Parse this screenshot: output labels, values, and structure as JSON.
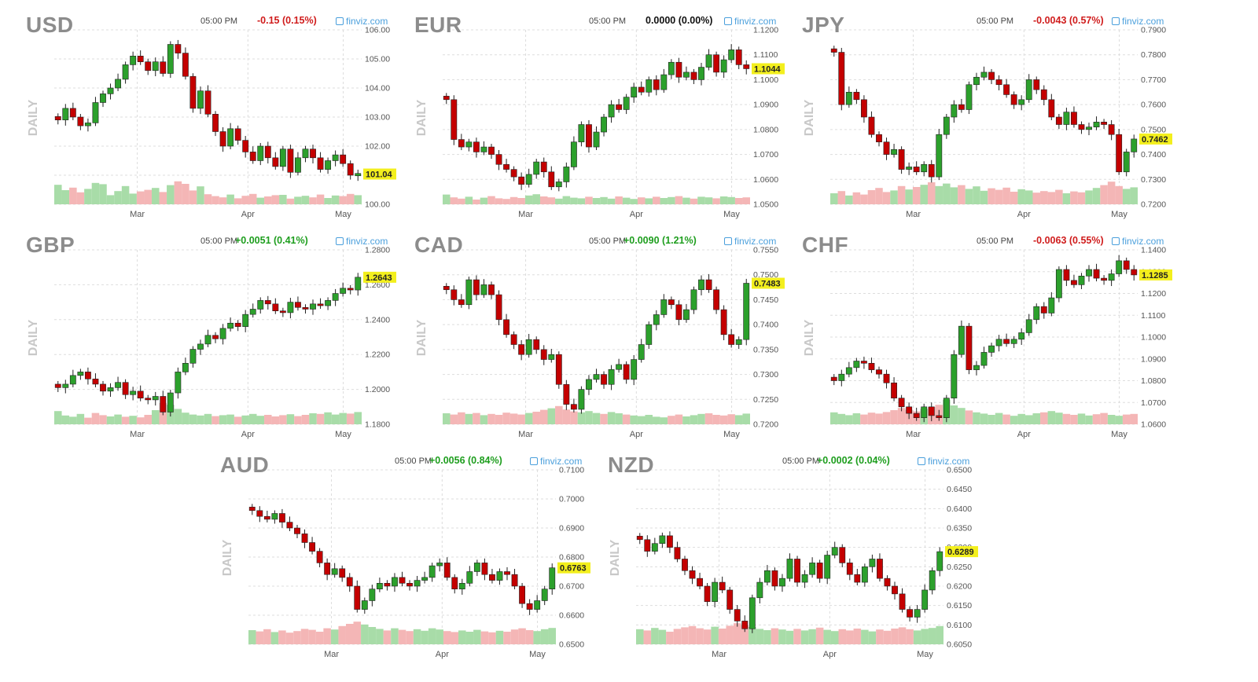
{
  "colors": {
    "up": "#2ca02c",
    "down": "#c40000",
    "vol_up": "#a8dca8",
    "vol_down": "#f4b6b6",
    "price_tag": "#f3ef1d",
    "brand": "#4a9fdc",
    "grid": "#dddddd"
  },
  "icons": {
    "brand_icon": "camera-icon"
  },
  "vertical_label": "DAILY",
  "brand": "finviz.com",
  "time": "05:00 PM",
  "chart_data": [
    {
      "type": "candlestick",
      "symbol": "USD",
      "change": "-0.15 (0.15%)",
      "change_dir": "down",
      "price": 101.04,
      "price_label": "101.04",
      "yticks": [
        "106.00",
        "105.00",
        "104.00",
        "103.00",
        "102.00",
        "101.00",
        "100.00"
      ],
      "ylim": [
        100.0,
        106.0
      ],
      "xticks": [
        "Mar",
        "Apr",
        "May"
      ],
      "closes": [
        102.9,
        103.3,
        103.0,
        102.7,
        102.8,
        103.5,
        103.8,
        104.0,
        104.3,
        104.8,
        105.1,
        104.9,
        104.6,
        104.9,
        104.5,
        105.5,
        105.2,
        104.4,
        103.3,
        103.9,
        103.1,
        102.5,
        102.0,
        102.6,
        102.2,
        101.8,
        101.5,
        102.0,
        101.6,
        101.3,
        101.9,
        101.1,
        101.6,
        101.9,
        101.6,
        101.2,
        101.5,
        101.7,
        101.4,
        101.0,
        101.04
      ],
      "volume": [
        0.62,
        0.45,
        0.53,
        0.38,
        0.49,
        0.68,
        0.64,
        0.29,
        0.42,
        0.58,
        0.34,
        0.41,
        0.46,
        0.52,
        0.39,
        0.61,
        0.73,
        0.65,
        0.44,
        0.57,
        0.32,
        0.26,
        0.22,
        0.31,
        0.19,
        0.27,
        0.33,
        0.21,
        0.25,
        0.29,
        0.3,
        0.18,
        0.24,
        0.27,
        0.22,
        0.31,
        0.2,
        0.28,
        0.26,
        0.33,
        0.29
      ]
    },
    {
      "type": "candlestick",
      "symbol": "EUR",
      "change": "0.0000 (0.00%)",
      "change_dir": "flat",
      "price": 1.1044,
      "price_label": "1.1044",
      "yticks": [
        "1.1200",
        "1.1100",
        "1.1000",
        "1.0900",
        "1.0800",
        "1.0700",
        "1.0600",
        "1.0500"
      ],
      "ylim": [
        1.05,
        1.12
      ],
      "xticks": [
        "Mar",
        "Apr",
        "May"
      ],
      "closes": [
        1.092,
        1.076,
        1.073,
        1.075,
        1.071,
        1.073,
        1.07,
        1.066,
        1.064,
        1.061,
        1.058,
        1.062,
        1.067,
        1.063,
        1.057,
        1.059,
        1.065,
        1.075,
        1.082,
        1.073,
        1.079,
        1.085,
        1.09,
        1.088,
        1.093,
        1.097,
        1.095,
        1.1,
        1.096,
        1.102,
        1.107,
        1.101,
        1.103,
        1.1,
        1.105,
        1.11,
        1.103,
        1.108,
        1.112,
        1.106,
        1.1044
      ],
      "volume": [
        0.31,
        0.22,
        0.18,
        0.24,
        0.15,
        0.21,
        0.26,
        0.19,
        0.17,
        0.23,
        0.2,
        0.28,
        0.32,
        0.25,
        0.22,
        0.18,
        0.26,
        0.21,
        0.19,
        0.24,
        0.2,
        0.23,
        0.18,
        0.25,
        0.21,
        0.17,
        0.22,
        0.19,
        0.24,
        0.2,
        0.23,
        0.26,
        0.21,
        0.18,
        0.24,
        0.22,
        0.19,
        0.25,
        0.23,
        0.2,
        0.22
      ]
    },
    {
      "type": "candlestick",
      "symbol": "JPY",
      "change": "-0.0043 (0.57%)",
      "change_dir": "down",
      "price": 0.7462,
      "price_label": "0.7462",
      "yticks": [
        "0.7900",
        "0.7800",
        "0.7700",
        "0.7600",
        "0.7500",
        "0.7400",
        "0.7300",
        "0.7200"
      ],
      "ylim": [
        0.72,
        0.79
      ],
      "xticks": [
        "Mar",
        "Apr",
        "May"
      ],
      "closes": [
        0.781,
        0.76,
        0.765,
        0.762,
        0.755,
        0.748,
        0.745,
        0.74,
        0.742,
        0.734,
        0.735,
        0.733,
        0.736,
        0.731,
        0.748,
        0.755,
        0.76,
        0.758,
        0.768,
        0.771,
        0.773,
        0.77,
        0.768,
        0.764,
        0.76,
        0.762,
        0.77,
        0.766,
        0.762,
        0.755,
        0.752,
        0.757,
        0.752,
        0.75,
        0.751,
        0.753,
        0.752,
        0.748,
        0.733,
        0.741,
        0.7462
      ],
      "volume": [
        0.35,
        0.42,
        0.28,
        0.38,
        0.31,
        0.45,
        0.52,
        0.39,
        0.44,
        0.58,
        0.47,
        0.55,
        0.62,
        0.7,
        0.58,
        0.66,
        0.54,
        0.61,
        0.49,
        0.57,
        0.43,
        0.51,
        0.46,
        0.53,
        0.4,
        0.48,
        0.44,
        0.37,
        0.42,
        0.39,
        0.46,
        0.35,
        0.41,
        0.38,
        0.44,
        0.52,
        0.61,
        0.72,
        0.58,
        0.49,
        0.54
      ]
    },
    {
      "type": "candlestick",
      "symbol": "GBP",
      "change": "+0.0051 (0.41%)",
      "change_dir": "up",
      "price": 1.2643,
      "price_label": "1.2643",
      "yticks": [
        "1.2800",
        "1.2600",
        "1.2400",
        "1.2200",
        "1.2000",
        "1.1800"
      ],
      "ylim": [
        1.18,
        1.28
      ],
      "xticks": [
        "Mar",
        "Apr",
        "May"
      ],
      "closes": [
        1.201,
        1.203,
        1.208,
        1.21,
        1.206,
        1.203,
        1.199,
        1.201,
        1.204,
        1.197,
        1.199,
        1.195,
        1.194,
        1.196,
        1.187,
        1.198,
        1.21,
        1.215,
        1.223,
        1.226,
        1.231,
        1.229,
        1.235,
        1.238,
        1.236,
        1.243,
        1.246,
        1.251,
        1.249,
        1.245,
        1.244,
        1.25,
        1.247,
        1.246,
        1.249,
        1.248,
        1.251,
        1.255,
        1.258,
        1.257,
        1.2643
      ],
      "volume": [
        0.42,
        0.28,
        0.24,
        0.33,
        0.21,
        0.36,
        0.29,
        0.25,
        0.31,
        0.24,
        0.27,
        0.22,
        0.3,
        0.45,
        0.68,
        0.62,
        0.49,
        0.37,
        0.31,
        0.28,
        0.33,
        0.26,
        0.29,
        0.31,
        0.24,
        0.28,
        0.33,
        0.27,
        0.3,
        0.25,
        0.29,
        0.32,
        0.26,
        0.3,
        0.35,
        0.33,
        0.38,
        0.31,
        0.36,
        0.34,
        0.39
      ]
    },
    {
      "type": "candlestick",
      "symbol": "CAD",
      "change": "+0.0090 (1.21%)",
      "change_dir": "up",
      "price": 0.7483,
      "price_label": "0.7483",
      "yticks": [
        "0.7550",
        "0.7500",
        "0.7450",
        "0.7400",
        "0.7350",
        "0.7300",
        "0.7250",
        "0.7200"
      ],
      "ylim": [
        0.72,
        0.755
      ],
      "xticks": [
        "Mar",
        "Apr",
        "May"
      ],
      "closes": [
        0.747,
        0.745,
        0.744,
        0.749,
        0.746,
        0.748,
        0.746,
        0.741,
        0.738,
        0.736,
        0.734,
        0.737,
        0.735,
        0.733,
        0.734,
        0.728,
        0.724,
        0.723,
        0.727,
        0.729,
        0.73,
        0.728,
        0.731,
        0.732,
        0.729,
        0.733,
        0.736,
        0.74,
        0.742,
        0.745,
        0.744,
        0.741,
        0.743,
        0.747,
        0.749,
        0.747,
        0.743,
        0.738,
        0.736,
        0.737,
        0.7483
      ],
      "volume": [
        0.35,
        0.31,
        0.38,
        0.33,
        0.36,
        0.29,
        0.33,
        0.3,
        0.37,
        0.34,
        0.31,
        0.36,
        0.4,
        0.46,
        0.51,
        0.58,
        0.47,
        0.41,
        0.38,
        0.42,
        0.36,
        0.33,
        0.39,
        0.35,
        0.31,
        0.28,
        0.26,
        0.3,
        0.24,
        0.22,
        0.27,
        0.31,
        0.25,
        0.29,
        0.33,
        0.35,
        0.3,
        0.28,
        0.32,
        0.29,
        0.34
      ]
    },
    {
      "type": "candlestick",
      "symbol": "CHF",
      "change": "-0.0063 (0.55%)",
      "change_dir": "down",
      "price": 1.1285,
      "price_label": "1.1285",
      "yticks": [
        "1.1400",
        "1.1300",
        "1.1200",
        "1.1100",
        "1.1000",
        "1.0900",
        "1.0800",
        "1.0700",
        "1.0600"
      ],
      "ylim": [
        1.06,
        1.14
      ],
      "xticks": [
        "Mar",
        "Apr",
        "May"
      ],
      "closes": [
        1.08,
        1.083,
        1.086,
        1.089,
        1.088,
        1.085,
        1.083,
        1.079,
        1.072,
        1.068,
        1.065,
        1.063,
        1.068,
        1.064,
        1.063,
        1.072,
        1.092,
        1.105,
        1.085,
        1.087,
        1.093,
        1.096,
        1.099,
        1.097,
        1.099,
        1.102,
        1.108,
        1.114,
        1.111,
        1.118,
        1.131,
        1.126,
        1.124,
        1.128,
        1.131,
        1.127,
        1.126,
        1.129,
        1.135,
        1.131,
        1.1285
      ],
      "volume": [
        0.38,
        0.33,
        0.29,
        0.35,
        0.31,
        0.37,
        0.34,
        0.39,
        0.45,
        0.52,
        0.46,
        0.41,
        0.49,
        0.55,
        0.62,
        0.78,
        0.6,
        0.52,
        0.44,
        0.38,
        0.34,
        0.3,
        0.36,
        0.31,
        0.27,
        0.33,
        0.29,
        0.35,
        0.38,
        0.42,
        0.37,
        0.33,
        0.3,
        0.34,
        0.28,
        0.32,
        0.36,
        0.3,
        0.27,
        0.31,
        0.33
      ]
    },
    {
      "type": "candlestick",
      "symbol": "AUD",
      "change": "+0.0056 (0.84%)",
      "change_dir": "up",
      "price": 0.6763,
      "price_label": "0.6763",
      "yticks": [
        "0.7100",
        "0.7000",
        "0.6900",
        "0.6800",
        "0.6700",
        "0.6600",
        "0.6500"
      ],
      "ylim": [
        0.65,
        0.71
      ],
      "xticks": [
        "Mar",
        "Apr",
        "May"
      ],
      "closes": [
        0.696,
        0.694,
        0.693,
        0.695,
        0.692,
        0.69,
        0.688,
        0.685,
        0.682,
        0.678,
        0.674,
        0.676,
        0.673,
        0.67,
        0.662,
        0.665,
        0.669,
        0.671,
        0.67,
        0.673,
        0.671,
        0.67,
        0.672,
        0.673,
        0.677,
        0.678,
        0.673,
        0.669,
        0.671,
        0.675,
        0.678,
        0.674,
        0.672,
        0.675,
        0.674,
        0.67,
        0.664,
        0.662,
        0.665,
        0.669,
        0.6763
      ],
      "volume": [
        0.45,
        0.41,
        0.48,
        0.39,
        0.44,
        0.37,
        0.42,
        0.49,
        0.46,
        0.4,
        0.51,
        0.47,
        0.58,
        0.65,
        0.72,
        0.63,
        0.55,
        0.49,
        0.44,
        0.51,
        0.46,
        0.42,
        0.48,
        0.43,
        0.51,
        0.47,
        0.42,
        0.39,
        0.44,
        0.4,
        0.46,
        0.41,
        0.38,
        0.43,
        0.4,
        0.47,
        0.51,
        0.45,
        0.42,
        0.48,
        0.52
      ]
    },
    {
      "type": "candlestick",
      "symbol": "NZD",
      "change": "+0.0002 (0.04%)",
      "change_dir": "up",
      "price": 0.6289,
      "price_label": "0.6289",
      "yticks": [
        "0.6500",
        "0.6450",
        "0.6400",
        "0.6350",
        "0.6300",
        "0.6250",
        "0.6200",
        "0.6150",
        "0.6100",
        "0.6050"
      ],
      "ylim": [
        0.605,
        0.65
      ],
      "xticks": [
        "Mar",
        "Apr",
        "May"
      ],
      "closes": [
        0.632,
        0.629,
        0.631,
        0.633,
        0.63,
        0.627,
        0.624,
        0.622,
        0.62,
        0.616,
        0.621,
        0.619,
        0.614,
        0.611,
        0.609,
        0.617,
        0.621,
        0.624,
        0.62,
        0.622,
        0.627,
        0.621,
        0.623,
        0.626,
        0.622,
        0.628,
        0.63,
        0.626,
        0.623,
        0.621,
        0.625,
        0.627,
        0.622,
        0.62,
        0.618,
        0.614,
        0.612,
        0.614,
        0.619,
        0.624,
        0.6289
      ],
      "volume": [
        0.48,
        0.44,
        0.52,
        0.46,
        0.4,
        0.49,
        0.54,
        0.58,
        0.51,
        0.47,
        0.56,
        0.5,
        0.59,
        0.67,
        0.61,
        0.55,
        0.49,
        0.45,
        0.51,
        0.47,
        0.43,
        0.49,
        0.44,
        0.48,
        0.53,
        0.46,
        0.42,
        0.48,
        0.44,
        0.5,
        0.46,
        0.41,
        0.47,
        0.43,
        0.5,
        0.54,
        0.48,
        0.44,
        0.49,
        0.52,
        0.58
      ]
    }
  ]
}
